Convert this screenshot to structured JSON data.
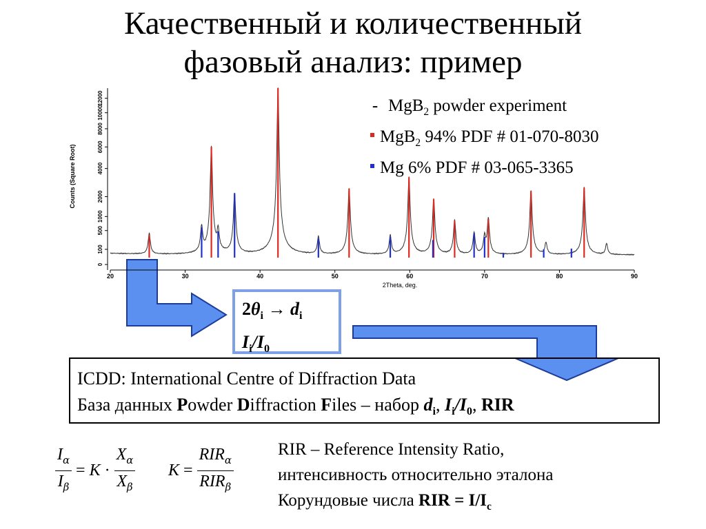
{
  "title": {
    "line1": "Качественный и количественный",
    "line2": "фазовый анализ: пример"
  },
  "legend": {
    "dash": "-",
    "items": [
      {
        "marker": "dash",
        "formula": "MgB",
        "sub": "2",
        "text": " powder experiment"
      },
      {
        "marker": "red",
        "formula": "MgB",
        "sub": "2",
        "text": " 94% PDF # 01-070-8030"
      },
      {
        "marker": "blue",
        "formula": "Mg",
        "sub": "",
        "text": " 6% PDF # 03-065-3365"
      }
    ]
  },
  "colors": {
    "experiment": "#333333",
    "mgb2": "#e0281e",
    "mg": "#1f2fd0",
    "arrow_fill": "#5b8ff0",
    "arrow_stroke": "#1d3c9a",
    "box_border": "#7f9fe6"
  },
  "conversion": {
    "two": "2",
    "theta": "θ",
    "i": "i",
    "arrow": " → ",
    "d": "d",
    "I": "I",
    "slash": "/",
    "I0": "I",
    "zero": "0"
  },
  "icdd": {
    "line1": "ICDD: International Centre of Diffraction Data",
    "line2_pre": "База данных ",
    "P": "P",
    "owder": "owder ",
    "D": "D",
    "iffraction": "iffraction ",
    "F": "F",
    "iles": "iles – набор ",
    "d": "d",
    "i": "i",
    "comma1": ", ",
    "I": "I",
    "slash": "/",
    "zero": "0",
    "comma2": ", ",
    "rir": "RIR"
  },
  "rir_text": {
    "line1": "RIR – Reference Intensity Ratio,",
    "line2": "интенсивность относительно эталона",
    "line3_pre": "Корундовые числа ",
    "rir_bold": "RIR = I/I",
    "c": "c"
  },
  "formula1": {
    "num": "I",
    "num_sub": "α",
    "den": "I",
    "den_sub": "β",
    "eq": "=",
    "K": "K",
    "dot": "·",
    "num2": "X",
    "num2_sub": "α",
    "den2": "X",
    "den2_sub": "β"
  },
  "formula2": {
    "K": "K",
    "eq": "=",
    "num": "RIR",
    "num_sub": "α",
    "den": "RIR",
    "den_sub": "β"
  },
  "chart_data": {
    "type": "line",
    "xlabel": "2Theta, deg.",
    "ylabel": "Counts (Square Root)",
    "xlim": [
      20,
      90
    ],
    "x_ticks": [
      20,
      30,
      40,
      50,
      60,
      70,
      80,
      90
    ],
    "y_ticks": [
      0,
      100,
      500,
      1000,
      2000,
      4000,
      6000,
      8000,
      10000,
      12000
    ],
    "y_scale": "sqrt",
    "ylim": [
      0,
      13500
    ],
    "series": [
      {
        "name": "MgB2 powder experiment",
        "kind": "profile",
        "background": 40,
        "peaks": [
          [
            25.2,
            380
          ],
          [
            32.2,
            600
          ],
          [
            33.5,
            6000
          ],
          [
            34.4,
            480
          ],
          [
            36.6,
            2200
          ],
          [
            42.4,
            13500
          ],
          [
            47.8,
            300
          ],
          [
            51.9,
            2500
          ],
          [
            57.4,
            330
          ],
          [
            59.9,
            3300
          ],
          [
            63.2,
            1850
          ],
          [
            66.0,
            830
          ],
          [
            68.6,
            420
          ],
          [
            70.0,
            330
          ],
          [
            70.5,
            900
          ],
          [
            76.2,
            2350
          ],
          [
            78.2,
            170
          ],
          [
            83.3,
            2550
          ],
          [
            86.3,
            150
          ]
        ]
      },
      {
        "name": "MgB2 94% PDF # 01-070-8030",
        "kind": "sticks",
        "x": [
          25.2,
          33.5,
          42.4,
          51.9,
          59.9,
          63.2,
          66.0,
          70.5,
          76.2,
          83.3
        ],
        "y": [
          380,
          6000,
          13500,
          2500,
          3300,
          1850,
          830,
          900,
          2350,
          2550
        ]
      },
      {
        "name": "Mg 6% PDF # 03-065-3365",
        "kind": "sticks",
        "x": [
          32.2,
          34.4,
          36.6,
          47.8,
          57.4,
          63.1,
          68.6,
          70.0,
          72.5,
          77.9,
          81.6
        ],
        "y": [
          600,
          480,
          2200,
          300,
          330,
          260,
          420,
          330,
          60,
          100,
          110
        ]
      }
    ]
  }
}
